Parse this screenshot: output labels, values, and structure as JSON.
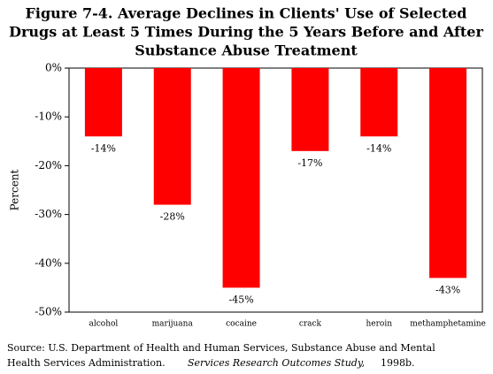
{
  "chart_data": {
    "type": "bar",
    "title": [
      "Figure 7-4.  Average Declines in Clients' Use of Selected",
      "Drugs at Least 5 Times During the 5 Years Before and After",
      "Substance Abuse Treatment"
    ],
    "ylabel": "Percent",
    "categories": [
      "alcohol",
      "marijuana",
      "cocaine",
      "crack",
      "heroin",
      "methamphetamine"
    ],
    "values": [
      -14,
      -28,
      -45,
      -17,
      -14,
      -43
    ],
    "value_labels": [
      "-14%",
      "-28%",
      "-45%",
      "-17%",
      "-14%",
      "-43%"
    ],
    "color": "#ff0000",
    "ylim": [
      -50,
      0
    ],
    "yticks": [
      {
        "value": 0,
        "label": "0%"
      },
      {
        "value": -10,
        "label": "-10%"
      },
      {
        "value": -20,
        "label": "-20%"
      },
      {
        "value": -30,
        "label": "-30%"
      },
      {
        "value": -40,
        "label": "-40%"
      },
      {
        "value": -50,
        "label": "-50%"
      }
    ],
    "grid": false
  },
  "source": {
    "text1": "Source:  U.S. Department of Health and Human Services, Substance Abuse and Mental",
    "text2": "Health Services Administration.",
    "title": "Services Research Outcomes Study,",
    "year": "1998b."
  }
}
